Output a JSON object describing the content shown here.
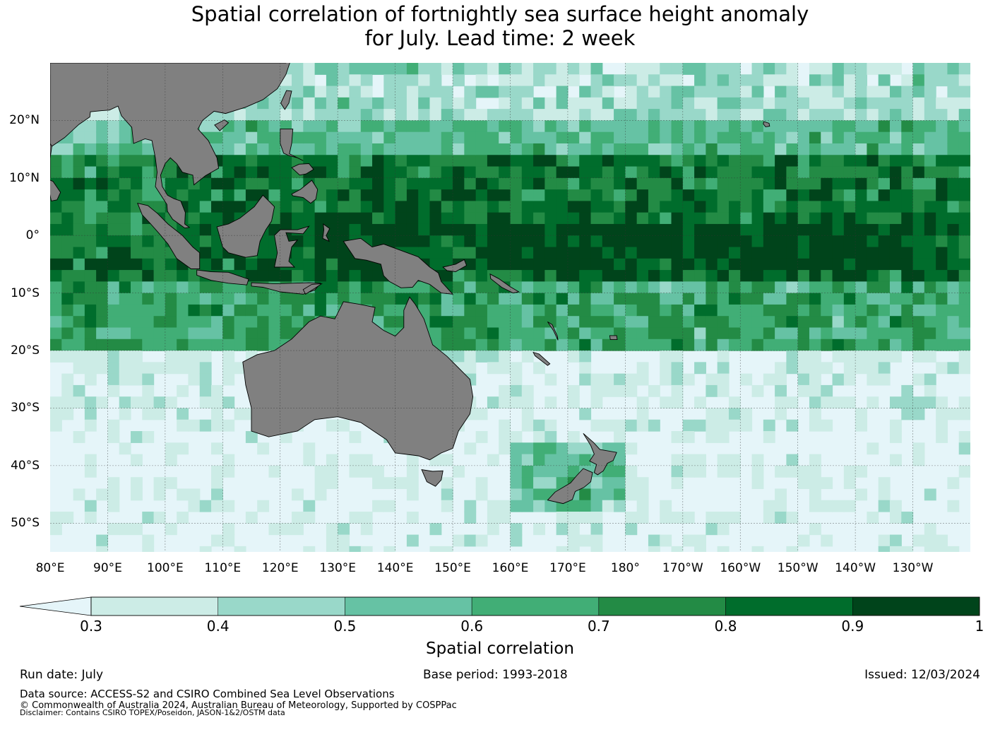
{
  "title_line1": "Spatial correlation of fortnightly sea surface height anomaly",
  "title_line2": "for July. Lead time: 2 week",
  "map": {
    "lon_range": [
      80,
      240
    ],
    "lat_range": [
      -55,
      30
    ],
    "x_ticks": [
      {
        "lon": 80,
        "label": "80°E"
      },
      {
        "lon": 90,
        "label": "90°E"
      },
      {
        "lon": 100,
        "label": "100°E"
      },
      {
        "lon": 110,
        "label": "110°E"
      },
      {
        "lon": 120,
        "label": "120°E"
      },
      {
        "lon": 130,
        "label": "130°E"
      },
      {
        "lon": 140,
        "label": "140°E"
      },
      {
        "lon": 150,
        "label": "150°E"
      },
      {
        "lon": 160,
        "label": "160°E"
      },
      {
        "lon": 170,
        "label": "170°E"
      },
      {
        "lon": 180,
        "label": "180°"
      },
      {
        "lon": 190,
        "label": "170°W"
      },
      {
        "lon": 200,
        "label": "160°W"
      },
      {
        "lon": 210,
        "label": "150°W"
      },
      {
        "lon": 220,
        "label": "140°W"
      },
      {
        "lon": 230,
        "label": "130°W"
      }
    ],
    "y_ticks": [
      {
        "lat": 20,
        "label": "20°N"
      },
      {
        "lat": 10,
        "label": "10°N"
      },
      {
        "lat": 0,
        "label": "0°"
      },
      {
        "lat": -10,
        "label": "10°S"
      },
      {
        "lat": -20,
        "label": "20°S"
      },
      {
        "lat": -30,
        "label": "30°S"
      },
      {
        "lat": -40,
        "label": "40°S"
      },
      {
        "lat": -50,
        "label": "50°S"
      }
    ],
    "land_color": "#808080",
    "ocean_low_color": "#e5f5f9"
  },
  "colorbar": {
    "title": "Spatial correlation",
    "bounds": [
      "0.3",
      "0.4",
      "0.5",
      "0.6",
      "0.7",
      "0.8",
      "0.9",
      "1"
    ],
    "colors": [
      "#ccece6",
      "#99d8c9",
      "#66c2a4",
      "#41ae76",
      "#238b45",
      "#006d2c",
      "#00441b"
    ],
    "under_color": "#e5f5f9"
  },
  "footer": {
    "run_date": "Run date: July",
    "base_period": "Base period: 1993-2018",
    "issued": "Issued: 12/03/2024",
    "data_source": "Data source: ACCESS-S2 and CSIRO Combined Sea Level Observations",
    "copyright": "© Commonwealth of Australia 2024, Australian Bureau of Meteorology, Supported by COSPPac",
    "disclaimer": "Disclaimer: Contains CSIRO TOPEX/Poseidon, JASON-1&2/OSTM data"
  }
}
